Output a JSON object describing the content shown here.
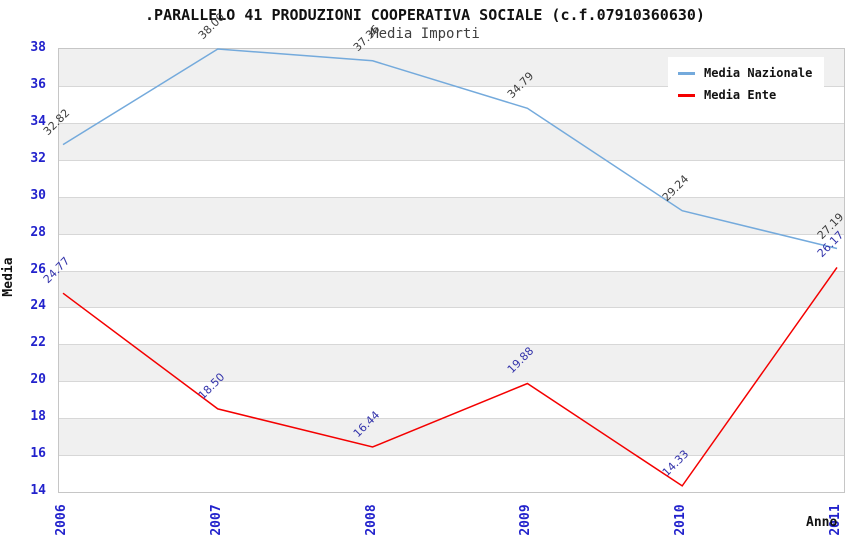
{
  "title": ".PARALLELO 41 PRODUZIONI COOPERATIVA SOCIALE (c.f.07910360630)",
  "subtitle": "Media Importi",
  "chart_data": {
    "type": "line",
    "title": ".PARALLELO 41 PRODUZIONI COOPERATIVA SOCIALE (c.f.07910360630)",
    "subtitle": "Media Importi",
    "xlabel": "Anno",
    "ylabel": "Media",
    "categories": [
      2006,
      2007,
      2008,
      2009,
      2010,
      2011
    ],
    "ylim": [
      14,
      38
    ],
    "ytick_step": 2,
    "grid": "horizontal-bands-alternating",
    "legend_position": "top-right",
    "series": [
      {
        "name": "Media Nazionale",
        "color": "#74aadc",
        "label_color": "#3d3d3d",
        "values": [
          32.82,
          38.0,
          37.36,
          34.79,
          29.24,
          27.19
        ]
      },
      {
        "name": "Media Ente",
        "color": "#f40000",
        "label_color": "#3333aa",
        "values": [
          24.77,
          18.5,
          16.44,
          19.88,
          14.33,
          26.17
        ]
      }
    ]
  },
  "colors": {
    "axis_tick": "#2222cc",
    "band_gray": "#f0f0f0",
    "band_white": "#ffffff",
    "gridline": "#d7d7d7",
    "plot_border": "#c6c6c6",
    "background": "#ffffff"
  }
}
